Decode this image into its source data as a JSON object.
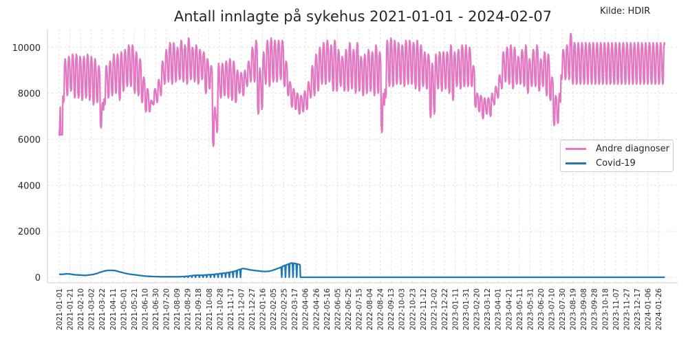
{
  "title": "Antall innlagte på sykehus 2021-01-01 - 2024-02-07",
  "source": "Kilde: HDIR",
  "legend": {
    "items": [
      {
        "label": "Andre diagnoser",
        "color": "#e377c2"
      },
      {
        "label": "Covid-19",
        "color": "#1f77b4"
      }
    ]
  },
  "chart_data": {
    "type": "line",
    "title": "Antall innlagte på sykehus 2021-01-01 - 2024-02-07",
    "annotation": "Kilde: HDIR",
    "xlabel": "",
    "ylabel": "",
    "ylim": [
      -300,
      10800
    ],
    "grid": true,
    "legend_position": "center right",
    "yticks": [
      0,
      2000,
      4000,
      6000,
      8000,
      10000
    ],
    "xticks": [
      "2021-01-01",
      "2021-01-21",
      "2021-02-10",
      "2021-03-02",
      "2021-03-22",
      "2021-04-11",
      "2021-05-01",
      "2021-05-21",
      "2021-06-10",
      "2021-06-30",
      "2021-07-20",
      "2021-08-09",
      "2021-08-29",
      "2021-09-18",
      "2021-10-08",
      "2021-10-28",
      "2021-11-17",
      "2021-12-07",
      "2021-12-27",
      "2022-01-16",
      "2022-02-05",
      "2022-02-25",
      "2022-03-17",
      "2022-04-06",
      "2022-04-26",
      "2022-05-16",
      "2022-06-05",
      "2022-06-25",
      "2022-07-15",
      "2022-08-04",
      "2022-08-24",
      "2022-09-13",
      "2022-10-03",
      "2022-10-23",
      "2022-11-12",
      "2022-12-02",
      "2022-12-22",
      "2023-01-11",
      "2023-01-31",
      "2023-02-20",
      "2023-03-12",
      "2023-04-01",
      "2023-04-21",
      "2023-05-11",
      "2023-05-31",
      "2023-06-20",
      "2023-07-10",
      "2023-07-30",
      "2023-08-19",
      "2023-09-08",
      "2023-09-28",
      "2023-10-18",
      "2023-11-07",
      "2023-11-27",
      "2023-12-17",
      "2024-01-06",
      "2024-01-26"
    ],
    "x_start": "2021-01-01",
    "x_end": "2024-02-07",
    "series": [
      {
        "name": "Andre diagnoser",
        "color": "#e377c2",
        "note": "Daily values oscillate weekly between weekday peaks and weekend troughs; listed as approximate [weekly_peak, weekly_trough] per week from 2021-01-01",
        "weekly_peak_trough": [
          [
            6200,
            6200
          ],
          [
            9500,
            7600
          ],
          [
            9600,
            7900
          ],
          [
            9700,
            8100
          ],
          [
            9700,
            7800
          ],
          [
            9600,
            7800
          ],
          [
            9600,
            7700
          ],
          [
            9700,
            7800
          ],
          [
            9600,
            7700
          ],
          [
            9500,
            7500
          ],
          [
            9200,
            7600
          ],
          [
            7600,
            6500
          ],
          [
            9200,
            7500
          ],
          [
            9400,
            7800
          ],
          [
            9700,
            7900
          ],
          [
            9700,
            8000
          ],
          [
            9800,
            7700
          ],
          [
            9900,
            8100
          ],
          [
            10100,
            8300
          ],
          [
            10100,
            8300
          ],
          [
            9800,
            8000
          ],
          [
            9500,
            7900
          ],
          [
            8700,
            7600
          ],
          [
            8200,
            7200
          ],
          [
            7700,
            7200
          ],
          [
            8200,
            7500
          ],
          [
            8600,
            7600
          ],
          [
            9400,
            7900
          ],
          [
            9900,
            8400
          ],
          [
            10200,
            8500
          ],
          [
            10200,
            8400
          ],
          [
            10000,
            8500
          ],
          [
            10300,
            8600
          ],
          [
            10100,
            8500
          ],
          [
            10400,
            8400
          ],
          [
            10000,
            8600
          ],
          [
            10100,
            8500
          ],
          [
            9900,
            8400
          ],
          [
            9800,
            8600
          ],
          [
            9500,
            8000
          ],
          [
            9200,
            8200
          ],
          [
            7400,
            5700
          ],
          [
            9300,
            6300
          ],
          [
            9300,
            7800
          ],
          [
            9400,
            7900
          ],
          [
            9500,
            7800
          ],
          [
            9400,
            7700
          ],
          [
            9000,
            7600
          ],
          [
            8900,
            8000
          ],
          [
            9000,
            7900
          ],
          [
            9400,
            8300
          ],
          [
            10000,
            8500
          ],
          [
            10300,
            8500
          ],
          [
            9100,
            7100
          ],
          [
            9800,
            7300
          ],
          [
            10300,
            8400
          ],
          [
            10400,
            8300
          ],
          [
            10300,
            8500
          ],
          [
            10300,
            8500
          ],
          [
            10300,
            8600
          ],
          [
            9400,
            8300
          ],
          [
            8500,
            7900
          ],
          [
            8200,
            7400
          ],
          [
            8000,
            7300
          ],
          [
            7900,
            7100
          ],
          [
            8100,
            7200
          ],
          [
            8500,
            7300
          ],
          [
            9200,
            7800
          ],
          [
            9700,
            7900
          ],
          [
            10000,
            8100
          ],
          [
            10200,
            8400
          ],
          [
            10300,
            8400
          ],
          [
            10100,
            8500
          ],
          [
            10300,
            8100
          ],
          [
            9900,
            8100
          ],
          [
            9600,
            8300
          ],
          [
            9900,
            8100
          ],
          [
            10200,
            8100
          ],
          [
            9900,
            8200
          ],
          [
            10200,
            8000
          ],
          [
            9600,
            8100
          ],
          [
            9700,
            7900
          ],
          [
            9900,
            8000
          ],
          [
            9800,
            8100
          ],
          [
            10100,
            7900
          ],
          [
            9800,
            8000
          ],
          [
            8000,
            6300
          ],
          [
            10300,
            7800
          ],
          [
            10400,
            8300
          ],
          [
            10300,
            8300
          ],
          [
            10200,
            8400
          ],
          [
            10100,
            8400
          ],
          [
            10300,
            8300
          ],
          [
            10300,
            8400
          ],
          [
            10200,
            8400
          ],
          [
            10300,
            8200
          ],
          [
            10100,
            8100
          ],
          [
            9800,
            8300
          ],
          [
            9700,
            8200
          ],
          [
            9300,
            6950
          ],
          [
            9700,
            7100
          ],
          [
            9800,
            8200
          ],
          [
            9800,
            8100
          ],
          [
            9800,
            8200
          ],
          [
            10100,
            8000
          ],
          [
            9800,
            7700
          ],
          [
            9900,
            8300
          ],
          [
            10100,
            8200
          ],
          [
            10100,
            8300
          ],
          [
            10000,
            8300
          ],
          [
            9200,
            8300
          ],
          [
            8000,
            7400
          ],
          [
            7900,
            7200
          ],
          [
            7800,
            6900
          ],
          [
            7800,
            7100
          ],
          [
            8000,
            7000
          ],
          [
            8300,
            7500
          ],
          [
            8800,
            7800
          ],
          [
            9800,
            8200
          ],
          [
            10000,
            8500
          ],
          [
            10100,
            8400
          ],
          [
            10000,
            8200
          ],
          [
            9600,
            8400
          ],
          [
            9900,
            8400
          ],
          [
            10100,
            8300
          ],
          [
            9500,
            8000
          ],
          [
            9900,
            8300
          ],
          [
            10100,
            8300
          ],
          [
            9500,
            8100
          ],
          [
            9800,
            8300
          ],
          [
            9700,
            7900
          ],
          [
            8700,
            7700
          ],
          [
            7900,
            6600
          ],
          [
            8000,
            6700
          ],
          [
            9900,
            8600
          ],
          [
            10100,
            8600
          ],
          [
            10600,
            8600
          ],
          [
            10200,
            8400
          ]
        ]
      },
      {
        "name": "Covid-19",
        "color": "#1f77b4",
        "note": "Approximate weekly values from 2021-01-01; after ~2022-03-28 the series is 0",
        "weekly_values": [
          130,
          130,
          150,
          140,
          110,
          100,
          90,
          80,
          100,
          120,
          160,
          220,
          270,
          300,
          300,
          290,
          240,
          200,
          160,
          130,
          110,
          90,
          70,
          50,
          40,
          30,
          30,
          20,
          20,
          20,
          20,
          20,
          20,
          30,
          40,
          60,
          80,
          90,
          90,
          100,
          110,
          120,
          140,
          160,
          180,
          200,
          230,
          270,
          330,
          380,
          360,
          320,
          300,
          280,
          260,
          250,
          260,
          300,
          360,
          420,
          500,
          560,
          620,
          600,
          560,
          500,
          0,
          0
        ],
        "zero_after": "2022-03-28"
      }
    ]
  },
  "axes": {
    "yticks": [
      "0",
      "2000",
      "4000",
      "6000",
      "8000",
      "10000"
    ]
  }
}
